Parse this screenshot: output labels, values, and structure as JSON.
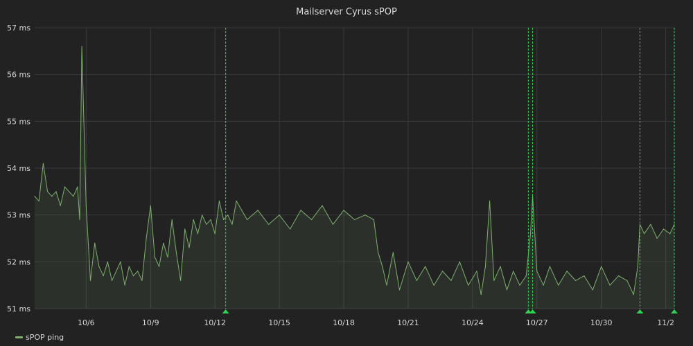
{
  "panel": {
    "title": "Mailserver Cyrus sPOP"
  },
  "legend": {
    "items": [
      {
        "label": "sPOP ping",
        "color": "#7eb26d"
      }
    ]
  },
  "colors": {
    "background": "#222223",
    "grid": "#3a3a3c",
    "series": "#7eb26d",
    "fill": "rgba(126,178,109,0.10)",
    "annotation": "#33d153",
    "text": "#d8d9da"
  },
  "chart_data": {
    "type": "area",
    "title": "Mailserver Cyrus sPOP",
    "xlabel": "",
    "ylabel": "",
    "x_unit": "days (October–November)",
    "xlim": [
      3.6,
      33.4
    ],
    "ylim": [
      51,
      57
    ],
    "y_ticks": [
      51,
      52,
      53,
      54,
      55,
      56,
      57
    ],
    "y_tick_labels": [
      "51 ms",
      "52 ms",
      "53 ms",
      "54 ms",
      "55 ms",
      "56 ms",
      "57 ms"
    ],
    "x_ticks": [
      6,
      9,
      12,
      15,
      18,
      21,
      24,
      27,
      30,
      33
    ],
    "x_tick_labels": [
      "10/6",
      "10/9",
      "10/12",
      "10/15",
      "10/18",
      "10/21",
      "10/24",
      "10/27",
      "10/30",
      "11/2"
    ],
    "grid": true,
    "legend_position": "bottom-left",
    "annotations": [
      12.5,
      26.6,
      26.8,
      31.8,
      33.9
    ],
    "series": [
      {
        "name": "sPOP ping",
        "x": [
          3.6,
          3.8,
          4.0,
          4.2,
          4.4,
          4.6,
          4.8,
          5.0,
          5.2,
          5.4,
          5.6,
          5.7,
          5.8,
          6.0,
          6.2,
          6.4,
          6.6,
          6.8,
          7.0,
          7.2,
          7.4,
          7.6,
          7.8,
          8.0,
          8.2,
          8.4,
          8.6,
          8.8,
          9.0,
          9.2,
          9.4,
          9.6,
          9.8,
          10.0,
          10.2,
          10.4,
          10.6,
          10.8,
          11.0,
          11.2,
          11.4,
          11.6,
          11.8,
          12.0,
          12.2,
          12.4,
          12.6,
          12.8,
          13.0,
          13.5,
          14.0,
          14.5,
          15.0,
          15.5,
          16.0,
          16.5,
          17.0,
          17.5,
          18.0,
          18.5,
          19.0,
          19.4,
          19.6,
          19.8,
          20.0,
          20.3,
          20.6,
          21.0,
          21.4,
          21.8,
          22.2,
          22.6,
          23.0,
          23.4,
          23.8,
          24.2,
          24.4,
          24.6,
          24.8,
          25.0,
          25.3,
          25.6,
          25.9,
          26.2,
          26.5,
          26.7,
          26.8,
          27.0,
          27.3,
          27.6,
          28.0,
          28.4,
          28.8,
          29.2,
          29.6,
          30.0,
          30.4,
          30.8,
          31.2,
          31.5,
          31.7,
          31.8,
          32.0,
          32.3,
          32.6,
          32.9,
          33.2,
          33.4
        ],
        "y": [
          53.4,
          53.3,
          54.1,
          53.5,
          53.4,
          53.5,
          53.2,
          53.6,
          53.5,
          53.4,
          53.6,
          52.9,
          56.6,
          53.2,
          51.6,
          52.4,
          51.9,
          51.7,
          52.0,
          51.6,
          51.8,
          52.0,
          51.5,
          51.9,
          51.7,
          51.8,
          51.6,
          52.5,
          53.2,
          52.1,
          51.9,
          52.4,
          52.1,
          52.9,
          52.2,
          51.6,
          52.7,
          52.3,
          52.9,
          52.6,
          53.0,
          52.8,
          52.9,
          52.6,
          53.3,
          52.9,
          53.0,
          52.8,
          53.3,
          52.9,
          53.1,
          52.8,
          53.0,
          52.7,
          53.1,
          52.9,
          53.2,
          52.8,
          53.1,
          52.9,
          53.0,
          52.9,
          52.2,
          51.9,
          51.5,
          52.2,
          51.4,
          52.0,
          51.6,
          51.9,
          51.5,
          51.8,
          51.6,
          52.0,
          51.5,
          51.8,
          51.3,
          51.9,
          53.3,
          51.6,
          51.9,
          51.4,
          51.8,
          51.5,
          51.7,
          52.6,
          53.4,
          51.8,
          51.5,
          51.9,
          51.5,
          51.8,
          51.6,
          51.7,
          51.4,
          51.9,
          51.5,
          51.7,
          51.6,
          51.3,
          51.9,
          52.8,
          52.6,
          52.8,
          52.5,
          52.7,
          52.6,
          52.8
        ]
      }
    ]
  }
}
